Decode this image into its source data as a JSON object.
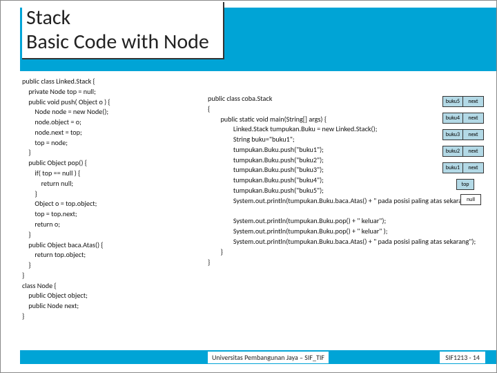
{
  "title_line1": "Stack",
  "title_line2": "Basic Code with Node",
  "code_left": "public class Linked.Stack {\n    private Node top = null;\n    public void push( Object o ) {\n        Node node = new Node();\n        node.object = o;\n        node.next = top;\n        top = node;\n    }\n    public Object pop() {\n        if( top == null ) {\n            return null;\n        }\n        Object o = top.object;\n        top = top.next;\n        return o;\n    }\n    public Object baca.Atas() {\n        return top.object;\n    }\n}\nclass Node {\n    public Object object;\n    public Node next;\n}",
  "code_right": "public class coba.Stack\n{\n        public static void main(String[] args) {\n                Linked.Stack tumpukan.Buku = new Linked.Stack();\n                String buku=\"buku1\";\n                tumpukan.Buku.push(\"buku1\");\n                tumpukan.Buku.push(\"buku2\");\n                tumpukan.Buku.push(\"buku3\");\n                tumpukan.Buku.push(\"buku4\");\n                tumpukan.Buku.push(\"buku5\");\n                System.out.println(tumpukan.Buku.baca.Atas() + \" pada posisi paling atas sekarang\");\n\n                System.out.println(tumpukan.Buku.pop() + \" keluar\");\n                System.out.println(tumpukan.Buku.pop() + \" keluar\" );\n                System.out.println(tumpukan.Buku.baca.Atas() + \" pada posisi paling atas sekarang\");\n        }\n}",
  "nodes": [
    {
      "label": "buku5",
      "next": "next"
    },
    {
      "label": "buku4",
      "next": "next"
    },
    {
      "label": "buku3",
      "next": "next"
    },
    {
      "label": "buku2",
      "next": "next"
    },
    {
      "label": "buku1",
      "next": "next"
    }
  ],
  "top_label": "top",
  "null_label": "null",
  "footer_left": "Universitas Pembangunan Jaya – SIF_TIF",
  "footer_right": "SIF1213 - 14",
  "colors": {
    "band": "#00a4d6",
    "node_fill": "#b3d9e6"
  }
}
